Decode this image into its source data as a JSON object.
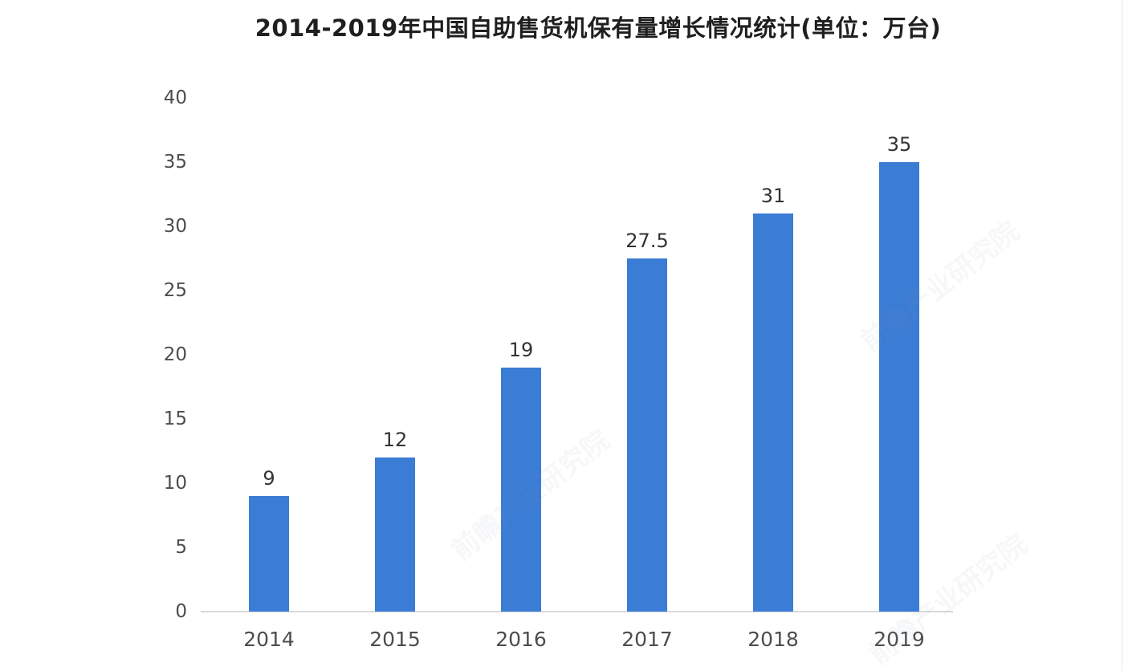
{
  "title": "2014-2019年中国自助售货机保有量增长情况统计(单位：万台)",
  "watermark": {
    "text": "前瞻产业研究院",
    "color": "#8fa0ba"
  },
  "chart_data": {
    "type": "bar",
    "title": "2014-2019年中国自助售货机保有量增长情况统计(单位：万台)",
    "categories": [
      "2014",
      "2015",
      "2016",
      "2017",
      "2018",
      "2019"
    ],
    "values": [
      9,
      12,
      19,
      27.5,
      31,
      35
    ],
    "value_labels": [
      "9",
      "12",
      "19",
      "27.5",
      "31",
      "35"
    ],
    "xlabel": "",
    "ylabel": "",
    "ylim": [
      0,
      40
    ],
    "yticks": [
      0,
      5,
      10,
      15,
      20,
      25,
      30,
      35,
      40
    ],
    "grid": false,
    "legend": false,
    "bar_color": "#3b7cd5",
    "axis_color": "#d9d9d9",
    "tick_label_color": "#4d4d4d",
    "value_label_color": "#333333",
    "unit": "万台"
  }
}
